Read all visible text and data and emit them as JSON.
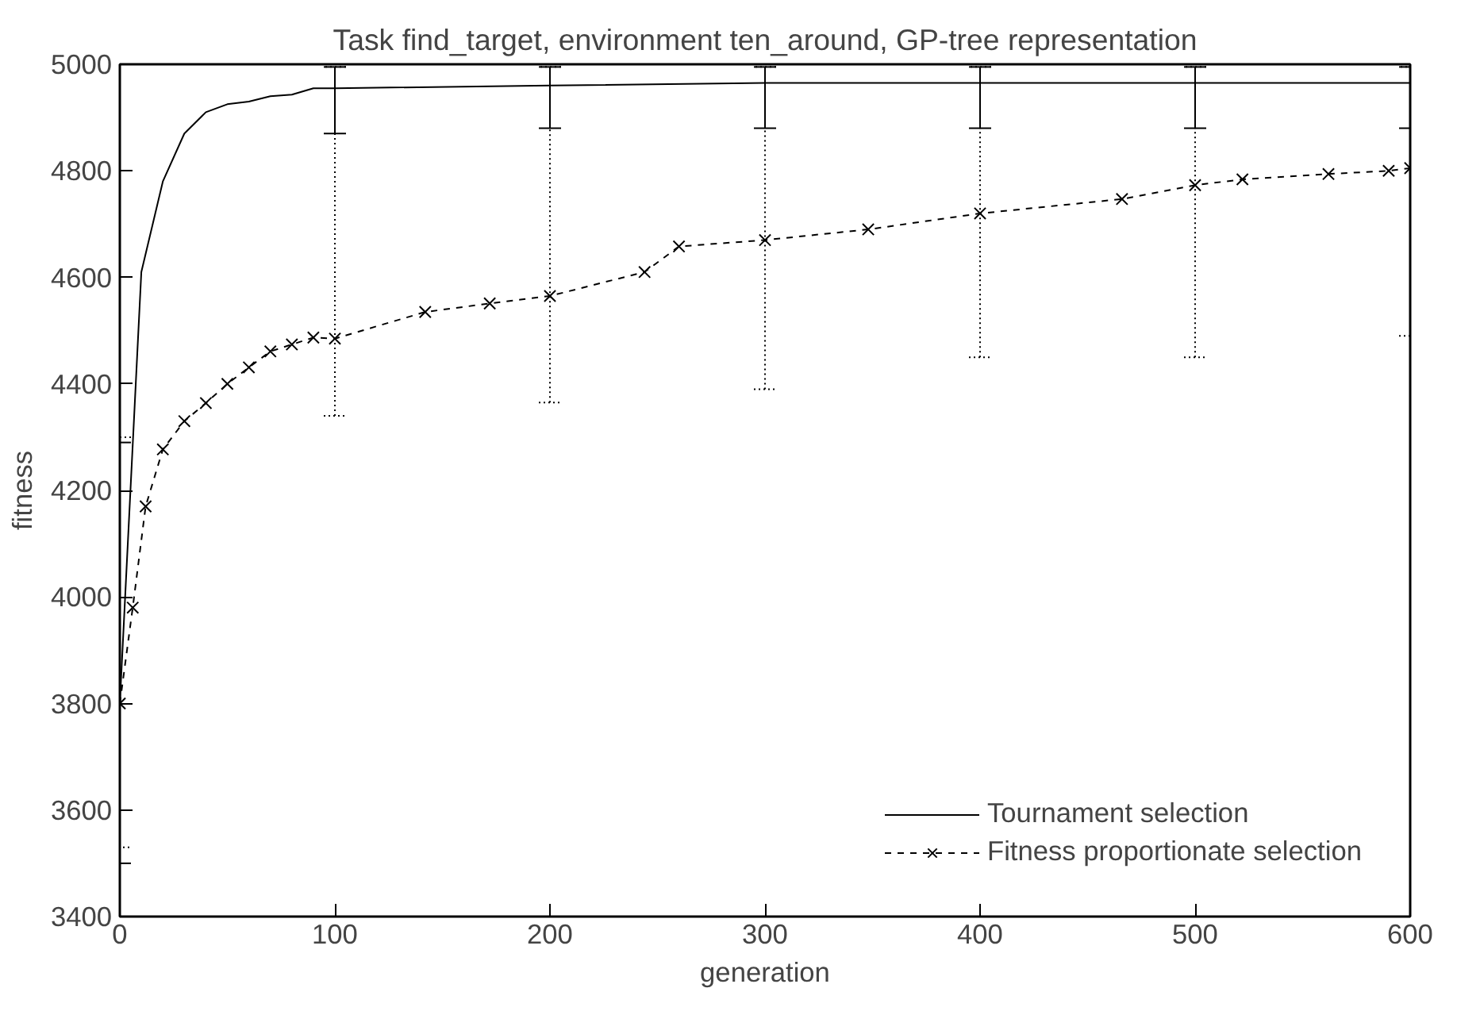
{
  "chart_data": {
    "type": "line",
    "title": "Task find_target, environment ten_around, GP-tree representation",
    "xlabel": "generation",
    "ylabel": "fitness",
    "xlim": [
      0,
      600
    ],
    "xticks": [
      0,
      100,
      200,
      300,
      400,
      500,
      600
    ],
    "ylim": [
      3400,
      5000
    ],
    "yticks": [
      3400,
      3600,
      3800,
      4000,
      4200,
      4400,
      4600,
      4800,
      5000
    ],
    "grid": false,
    "legend": "bottom right",
    "series": [
      {
        "name": "Tournament selection",
        "color": "#000000",
        "line_style": "solid",
        "marker": "none",
        "x": [
          0,
          10,
          20,
          30,
          40,
          50,
          60,
          70,
          80,
          90,
          100,
          200,
          300,
          400,
          500,
          600
        ],
        "values": [
          3800,
          4610,
          4780,
          4870,
          4910,
          4925,
          4930,
          4940,
          4943,
          4955,
          4955,
          4960,
          4965,
          4965,
          4965,
          4965
        ],
        "errors": [
          [
            3500,
            4290
          ],
          null,
          null,
          null,
          null,
          null,
          null,
          null,
          null,
          null,
          [
            4870,
            4995
          ],
          [
            4880,
            4995
          ],
          [
            4880,
            4995
          ],
          [
            4880,
            4995
          ],
          [
            4880,
            4995
          ],
          [
            4880,
            4995
          ]
        ]
      },
      {
        "name": "Fitness proportionate selection",
        "color": "#000000",
        "line_style": "dashed",
        "marker": "cross",
        "x": [
          0,
          6,
          12,
          20,
          30,
          40,
          50,
          60,
          70,
          80,
          90,
          100,
          142,
          172,
          200,
          244,
          260,
          300,
          348,
          400,
          466,
          500,
          522,
          562,
          590,
          600
        ],
        "values": [
          3800,
          3980,
          4170,
          4277,
          4330,
          4364,
          4400,
          4431,
          4461,
          4474,
          4487,
          4485,
          4535,
          4551,
          4565,
          4610,
          4658,
          4670,
          4690,
          4720,
          4747,
          4773,
          4784,
          4794,
          4800,
          4805
        ],
        "errors": [
          [
            3530,
            4300
          ],
          null,
          null,
          null,
          null,
          null,
          null,
          null,
          null,
          null,
          null,
          [
            4340,
            4995
          ],
          null,
          null,
          [
            4365,
            4995
          ],
          null,
          null,
          [
            4390,
            4995
          ],
          null,
          [
            4450,
            4995
          ],
          null,
          [
            4450,
            4995
          ],
          null,
          null,
          null,
          [
            4490,
            4995
          ]
        ]
      }
    ]
  }
}
